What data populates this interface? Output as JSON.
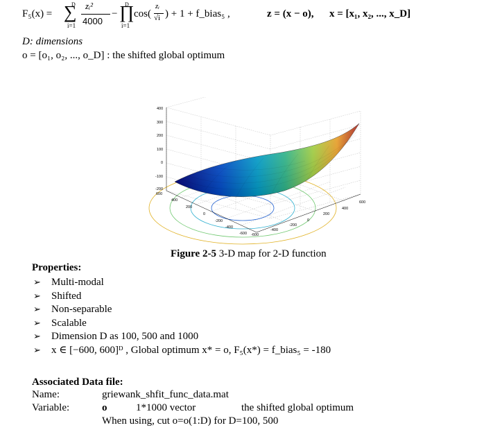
{
  "formula": {
    "lhs": "F₅(x) =",
    "sum_top": "D",
    "sum_bottom": "i=1",
    "frac_num": "zᵢ²",
    "frac_den": "4000",
    "prod_top": "D",
    "prod_bottom": "i=1",
    "cos_part": "cos(",
    "cos_num": "zᵢ",
    "cos_den": "√i",
    "tail": ") + 1 + f_bias₅ ,",
    "z_def": "z = (x − o),",
    "x_def": "x = [x₁, x₂, ..., x_D]"
  },
  "defs": {
    "dims": "D: dimensions",
    "optimum": "o = [o₁, o₂, ..., o_D] : the shifted global optimum"
  },
  "figure": {
    "z_ticks": [
      "400",
      "300",
      "200",
      "100",
      "0",
      "-100",
      "-200"
    ],
    "y_ticks": [
      "600",
      "400",
      "200",
      "0",
      "-200",
      "-400",
      "-600"
    ],
    "x_ticks": [
      "600",
      "400",
      "200",
      "0",
      "-200",
      "-400",
      "-600"
    ],
    "caption_bold": "Figure 2-5",
    "caption_rest": " 3-D map for 2-D function"
  },
  "properties": {
    "title": "Properties:",
    "items": [
      "Multi-modal",
      "Shifted",
      "Non-separable",
      "Scalable",
      "Dimension D as 100, 500 and 1000",
      "x ∈ [−600, 600]ᴰ , Global optimum x* = o,  F₅(x*) = f_bias₅ = -180"
    ]
  },
  "datafile": {
    "title": "Associated Data file:",
    "name_label": "Name:",
    "name_value": "griewank_shfit_func_data.mat",
    "var_label": "Variable:",
    "var_symbol": "o",
    "var_size": "1*1000 vector",
    "var_desc": "the shifted global optimum",
    "note": "When using, cut o=o(1:D) for D=100, 500"
  }
}
